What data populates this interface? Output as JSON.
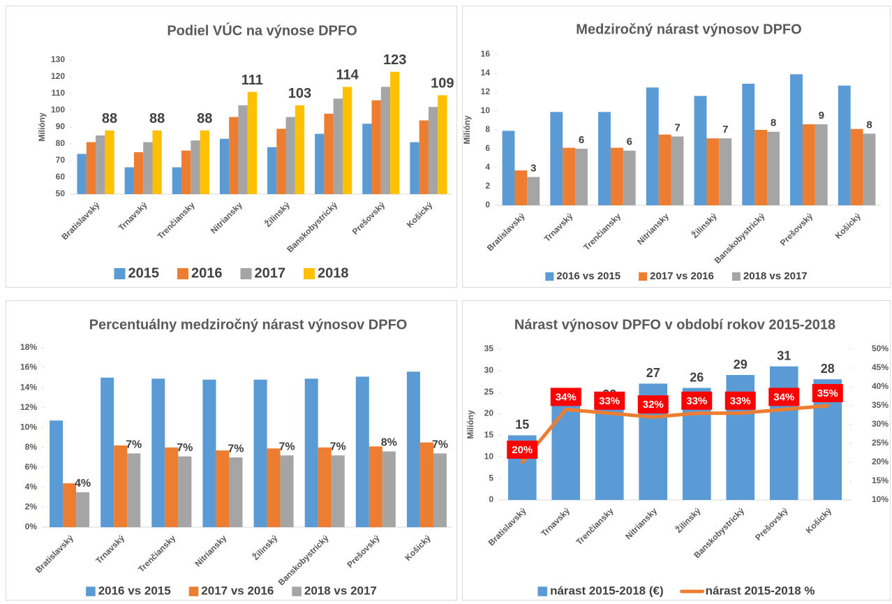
{
  "chart_data": [
    {
      "type": "bar",
      "title": "Podiel VÚC na výnose DPFO",
      "ylabel": "Milióny",
      "categories": [
        "Bratislavský",
        "Trnavský",
        "Trenčiansky",
        "Nitriansky",
        "Žilinský",
        "Banskobystrický",
        "Prešovský",
        "Košický"
      ],
      "series": [
        {
          "name": "2015",
          "color": "#5b9bd5",
          "values": [
            74,
            66,
            66,
            83,
            78,
            86,
            92,
            81
          ]
        },
        {
          "name": "2016",
          "color": "#ed7d31",
          "values": [
            81,
            75,
            76,
            96,
            89,
            98,
            106,
            94
          ]
        },
        {
          "name": "2017",
          "color": "#a5a5a5",
          "values": [
            85,
            81,
            82,
            103,
            96,
            107,
            114,
            102
          ]
        },
        {
          "name": "2018",
          "color": "#ffc000",
          "values": [
            88,
            88,
            88,
            111,
            103,
            114,
            123,
            109
          ],
          "data_labels": true
        }
      ],
      "ylim": [
        50,
        130
      ],
      "yticks": [
        50,
        60,
        70,
        80,
        90,
        100,
        110,
        120,
        130
      ],
      "legend": "bottom"
    },
    {
      "type": "bar",
      "title": "Medziročný nárast výnosov DPFO",
      "ylabel": "Milióny",
      "categories": [
        "Bratislavský",
        "Trnavský",
        "Trenčiansky",
        "Nitriansky",
        "Žilinský",
        "Banskobystrický",
        "Prešovský",
        "Košický"
      ],
      "series": [
        {
          "name": "2016 vs 2015",
          "color": "#5b9bd5",
          "values": [
            7.9,
            9.9,
            9.9,
            12.5,
            11.6,
            12.9,
            13.9,
            12.7
          ]
        },
        {
          "name": "2017 vs 2016",
          "color": "#ed7d31",
          "values": [
            3.7,
            6.1,
            6.1,
            7.5,
            7.1,
            8.0,
            8.6,
            8.1
          ]
        },
        {
          "name": "2018 vs 2017",
          "color": "#a5a5a5",
          "values": [
            3.0,
            6.0,
            5.8,
            7.3,
            7.1,
            7.8,
            8.6,
            7.6
          ],
          "value_labels": [
            "3",
            "6",
            "6",
            "7",
            "7",
            "8",
            "9",
            "8"
          ]
        }
      ],
      "ylim": [
        0,
        16
      ],
      "yticks": [
        0,
        2,
        4,
        6,
        8,
        10,
        12,
        14,
        16
      ],
      "legend": "bottom"
    },
    {
      "type": "bar",
      "title": "Percentuálny medziročný nárast výnosov DPFO",
      "categories": [
        "Bratislavský",
        "Trnavský",
        "Trenčiansky",
        "Nitriansky",
        "Žilinský",
        "Banskobystrický",
        "Prešovský",
        "Košický"
      ],
      "series": [
        {
          "name": "2016 vs 2015",
          "color": "#5b9bd5",
          "values": [
            10.7,
            15.0,
            14.9,
            14.8,
            14.8,
            14.9,
            15.1,
            15.6
          ]
        },
        {
          "name": "2017 vs 2016",
          "color": "#ed7d31",
          "values": [
            4.4,
            8.2,
            8.0,
            7.7,
            7.9,
            8.0,
            8.1,
            8.5
          ]
        },
        {
          "name": "2018 vs 2017",
          "color": "#a5a5a5",
          "values": [
            3.5,
            7.4,
            7.1,
            7.0,
            7.2,
            7.2,
            7.6,
            7.4
          ],
          "value_labels": [
            "4%",
            "7%",
            "7%",
            "7%",
            "7%",
            "7%",
            "8%",
            "7%"
          ]
        }
      ],
      "ylim": [
        0,
        18
      ],
      "yticks": [
        {
          "value": 0,
          "label": "0%"
        },
        {
          "value": 2,
          "label": "2%"
        },
        {
          "value": 4,
          "label": "4%"
        },
        {
          "value": 6,
          "label": "6%"
        },
        {
          "value": 8,
          "label": "8%"
        },
        {
          "value": 10,
          "label": "10%"
        },
        {
          "value": 12,
          "label": "12%"
        },
        {
          "value": 14,
          "label": "14%"
        },
        {
          "value": 16,
          "label": "16%"
        },
        {
          "value": 18,
          "label": "18%"
        }
      ],
      "legend": "bottom"
    },
    {
      "type": "bar",
      "title": "Nárast výnosov DPFO v období rokov 2015-2018",
      "ylabel": "Milióny",
      "categories": [
        "Bratislavský",
        "Trnavský",
        "Trenčiansky",
        "Nitriansky",
        "Žilinský",
        "Banskobystrický",
        "Prešovský",
        "Košický"
      ],
      "series": [
        {
          "name": "nárast 2015-2018 (€)",
          "color": "#5b9bd5",
          "values": [
            15,
            22,
            22,
            27,
            26,
            29,
            31,
            28
          ],
          "data_labels": true
        },
        {
          "name": "nárast 2015-2018 %",
          "type": "line",
          "axis": "y2",
          "color": "#ed7d31",
          "values": [
            20,
            34,
            33,
            32,
            33,
            33,
            34,
            35
          ],
          "value_labels": [
            "20%",
            "34%",
            "33%",
            "32%",
            "33%",
            "33%",
            "34%",
            "35%"
          ],
          "label_box": "#ff0000"
        }
      ],
      "ylim": [
        0,
        35
      ],
      "yticks": [
        0,
        5,
        10,
        15,
        20,
        25,
        30,
        35
      ],
      "y2lim": [
        10,
        50
      ],
      "y2ticks": [
        {
          "value": 10,
          "label": "10%"
        },
        {
          "value": 15,
          "label": "15%"
        },
        {
          "value": 20,
          "label": "20%"
        },
        {
          "value": 25,
          "label": "25%"
        },
        {
          "value": 30,
          "label": "30%"
        },
        {
          "value": 35,
          "label": "35%"
        },
        {
          "value": 40,
          "label": "40%"
        },
        {
          "value": 45,
          "label": "45%"
        },
        {
          "value": 50,
          "label": "50%"
        }
      ],
      "legend": "bottom"
    }
  ]
}
